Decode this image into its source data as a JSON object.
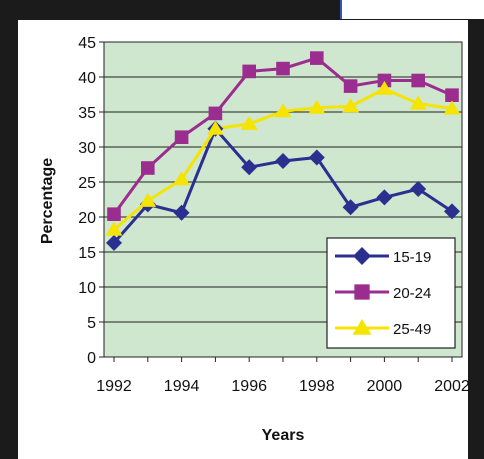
{
  "chart_data": {
    "type": "line",
    "title": "",
    "xlabel": "Years",
    "ylabel": "Percentage",
    "x": [
      1992,
      1993,
      1994,
      1995,
      1996,
      1997,
      1998,
      1999,
      2000,
      2001,
      2002
    ],
    "x_tick_labels": [
      "1992",
      "1994",
      "1996",
      "1998",
      "2000",
      "2002"
    ],
    "y_tick_labels": [
      "0",
      "5",
      "10",
      "15",
      "20",
      "25",
      "30",
      "35",
      "40",
      "45"
    ],
    "ylim": [
      0,
      45
    ],
    "grid": true,
    "legend_position": "bottom-right",
    "plot_background": "#cfe6cf",
    "series": [
      {
        "name": "15-19",
        "color": "#2b2f8f",
        "marker": "diamond",
        "values": [
          16.3,
          21.8,
          20.6,
          32.6,
          27.1,
          28.0,
          28.5,
          21.4,
          22.8,
          24.0,
          20.8
        ]
      },
      {
        "name": "20-24",
        "color": "#9b2d8f",
        "marker": "square",
        "values": [
          20.4,
          27.0,
          31.4,
          34.8,
          40.8,
          41.2,
          42.7,
          38.7,
          39.5,
          39.5,
          37.4
        ]
      },
      {
        "name": "25-49",
        "color": "#f5e400",
        "marker": "triangle",
        "values": [
          18.2,
          22.3,
          25.4,
          32.6,
          33.3,
          35.1,
          35.6,
          35.8,
          38.3,
          36.2,
          35.5
        ]
      }
    ]
  }
}
